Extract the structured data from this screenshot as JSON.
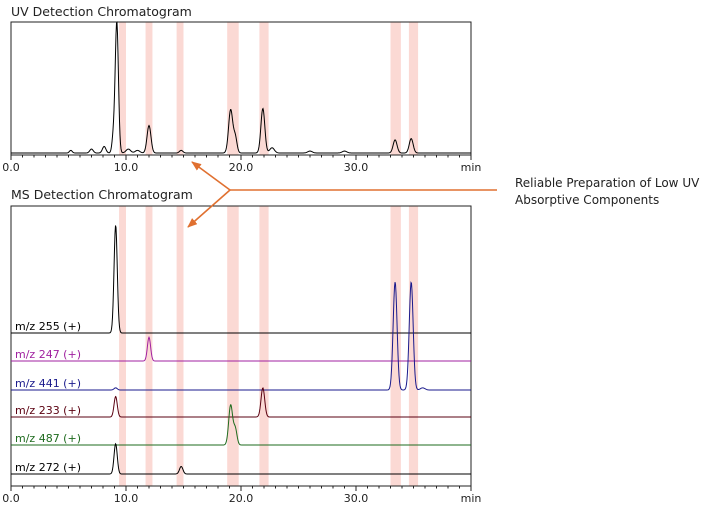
{
  "chart_data": [
    {
      "type": "line",
      "title": "UV Detection Chromatogram",
      "xlabel": "min",
      "xlim": [
        0,
        40
      ],
      "x_ticks": [
        "0.0",
        "10.0",
        "20.0",
        "30.0"
      ],
      "highlight_bands": [
        [
          9.4,
          10.0
        ],
        [
          11.7,
          12.3
        ],
        [
          14.4,
          15.0
        ],
        [
          18.8,
          19.8
        ],
        [
          21.6,
          22.4
        ],
        [
          33.0,
          33.9
        ],
        [
          34.6,
          35.4
        ]
      ],
      "series": [
        {
          "color": "#000000",
          "peaks": [
            {
              "rt": 5.2,
              "height": 0.02,
              "width": 0.12
            },
            {
              "rt": 7.0,
              "height": 0.03,
              "width": 0.15
            },
            {
              "rt": 8.1,
              "height": 0.05,
              "width": 0.15
            },
            {
              "rt": 8.9,
              "height": 0.12,
              "width": 0.12
            },
            {
              "rt": 9.2,
              "height": 1.0,
              "width": 0.14
            },
            {
              "rt": 10.2,
              "height": 0.03,
              "width": 0.2
            },
            {
              "rt": 11.0,
              "height": 0.02,
              "width": 0.2
            },
            {
              "rt": 12.0,
              "height": 0.21,
              "width": 0.17
            },
            {
              "rt": 14.8,
              "height": 0.02,
              "width": 0.15
            },
            {
              "rt": 19.1,
              "height": 0.33,
              "width": 0.18
            },
            {
              "rt": 19.5,
              "height": 0.12,
              "width": 0.15
            },
            {
              "rt": 21.9,
              "height": 0.34,
              "width": 0.17
            },
            {
              "rt": 22.7,
              "height": 0.04,
              "width": 0.2
            },
            {
              "rt": 26.0,
              "height": 0.015,
              "width": 0.2
            },
            {
              "rt": 29.0,
              "height": 0.015,
              "width": 0.2
            },
            {
              "rt": 33.4,
              "height": 0.1,
              "width": 0.17
            },
            {
              "rt": 34.8,
              "height": 0.11,
              "width": 0.17
            }
          ]
        }
      ]
    },
    {
      "type": "line",
      "title": "MS Detection Chromatogram",
      "xlabel": "min",
      "xlim": [
        0,
        40
      ],
      "x_ticks": [
        "0.0",
        "10.0",
        "20.0",
        "30.0"
      ],
      "highlight_bands": [
        [
          9.4,
          10.0
        ],
        [
          11.7,
          12.3
        ],
        [
          14.4,
          15.0
        ],
        [
          18.8,
          19.8
        ],
        [
          21.6,
          22.4
        ],
        [
          33.0,
          33.9
        ],
        [
          34.6,
          35.4
        ]
      ],
      "series": [
        {
          "name": "m/z 255 (+)",
          "color": "#000000",
          "peaks": [
            {
              "rt": 9.1,
              "height": 1.0,
              "width": 0.14
            }
          ]
        },
        {
          "name": "m/z 247 (+)",
          "color": "#a020a0",
          "peaks": [
            {
              "rt": 12.0,
              "height": 0.22,
              "width": 0.14
            }
          ]
        },
        {
          "name": "m/z 441 (+)",
          "color": "#1a1a8c",
          "peaks": [
            {
              "rt": 9.1,
              "height": 0.02,
              "width": 0.14
            },
            {
              "rt": 33.4,
              "height": 1.0,
              "width": 0.17
            },
            {
              "rt": 34.8,
              "height": 1.0,
              "width": 0.17
            },
            {
              "rt": 35.8,
              "height": 0.02,
              "width": 0.2
            }
          ]
        },
        {
          "name": "m/z 233 (+)",
          "color": "#5a0010",
          "peaks": [
            {
              "rt": 9.1,
              "height": 0.19,
              "width": 0.14
            },
            {
              "rt": 21.9,
              "height": 0.27,
              "width": 0.16
            }
          ]
        },
        {
          "name": "m/z 487 (+)",
          "color": "#1e6b1e",
          "peaks": [
            {
              "rt": 19.1,
              "height": 0.37,
              "width": 0.17
            },
            {
              "rt": 19.5,
              "height": 0.15,
              "width": 0.15
            }
          ]
        },
        {
          "name": "m/z 272 (+)",
          "color": "#000000",
          "peaks": [
            {
              "rt": 9.1,
              "height": 0.28,
              "width": 0.14
            },
            {
              "rt": 14.8,
              "height": 0.07,
              "width": 0.15
            }
          ]
        }
      ]
    }
  ],
  "annotation": {
    "lines": [
      "Reliable Preparation of Low UV",
      "Absorptive Components"
    ],
    "color": "#e07030"
  },
  "band_color": "#fbd9d4"
}
